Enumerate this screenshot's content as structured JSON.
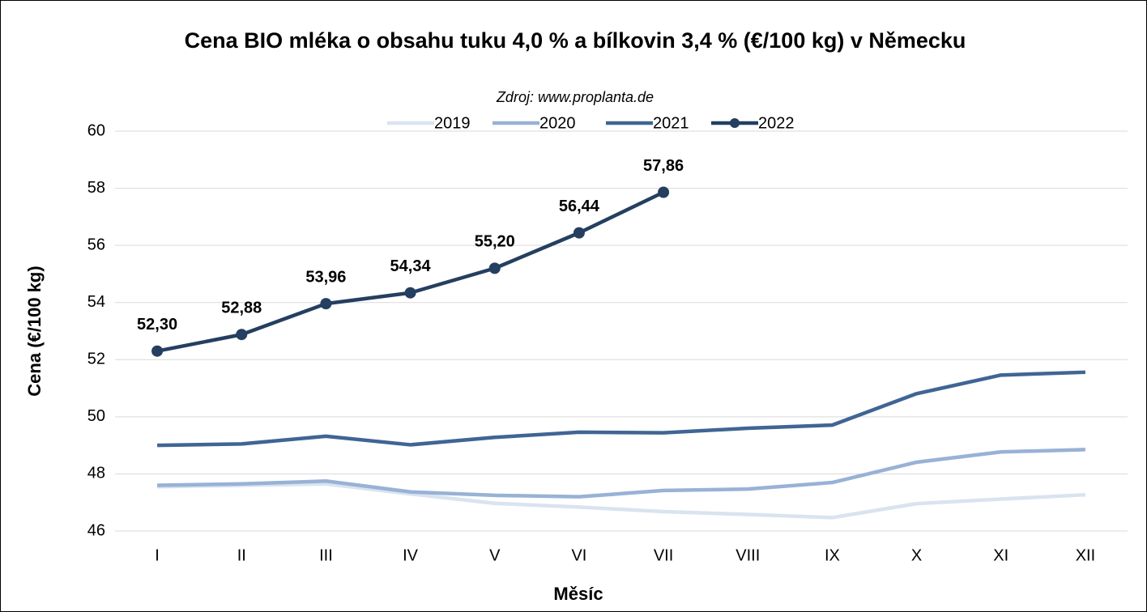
{
  "chart_data": {
    "type": "line",
    "title": "Cena BIO mléka o obsahu tuku 4,0 % a bílkovin 3,4 % (€/100 kg) v Německu",
    "subtitle": "Zdroj: www.proplanta.de",
    "xlabel": "Měsíc",
    "ylabel": "Cena (€/100 kg)",
    "categories": [
      "I",
      "II",
      "III",
      "IV",
      "V",
      "VI",
      "VII",
      "VIII",
      "IX",
      "X",
      "XI",
      "XII"
    ],
    "series": [
      {
        "name": "2019",
        "color": "#dae3f0",
        "values": [
          47.55,
          47.6,
          47.65,
          47.3,
          46.97,
          46.84,
          46.68,
          46.58,
          46.47,
          46.96,
          47.12,
          47.27
        ]
      },
      {
        "name": "2020",
        "color": "#98b2d6",
        "values": [
          47.6,
          47.65,
          47.75,
          47.37,
          47.25,
          47.2,
          47.42,
          47.47,
          47.7,
          48.41,
          48.77,
          48.85
        ]
      },
      {
        "name": "2021",
        "color": "#3f6594",
        "values": [
          49.0,
          49.05,
          49.32,
          49.02,
          49.28,
          49.46,
          49.44,
          49.6,
          49.71,
          50.81,
          51.46,
          51.56
        ]
      },
      {
        "name": "2022",
        "color": "#243f60",
        "markers": true,
        "values": [
          52.3,
          52.88,
          53.96,
          54.34,
          55.2,
          56.44,
          57.86,
          null,
          null,
          null,
          null,
          null
        ],
        "value_labels": [
          "52,30",
          "52,88",
          "53,96",
          "54,34",
          "55,20",
          "56,44",
          "57,86",
          null,
          null,
          null,
          null,
          null
        ]
      }
    ],
    "ylim": [
      46,
      60
    ],
    "yticks": [
      46,
      48,
      50,
      52,
      54,
      56,
      58,
      60
    ],
    "grid": true,
    "legend": "top"
  }
}
